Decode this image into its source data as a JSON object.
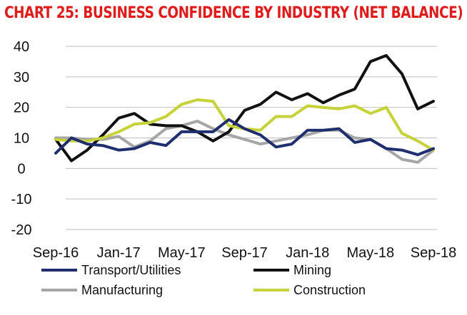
{
  "colors": {
    "title": "#e01b1b",
    "transport": "#1f2e6e",
    "mining": "#111111",
    "manufacturing": "#a6a6a6",
    "construction": "#c6d23a",
    "grid": "#bfbfbf"
  },
  "chart_data": {
    "type": "line",
    "title": "CHART 25: BUSINESS CONFIDENCE BY INDUSTRY (NET BALANCE)",
    "xlabel": "",
    "ylabel": "",
    "ylim": [
      -20,
      40
    ],
    "yticks": [
      40,
      30,
      20,
      10,
      0,
      -10,
      -20
    ],
    "grid": true,
    "legend_position": "bottom",
    "x_tick_labels": [
      "Sep-16",
      "Jan-17",
      "May-17",
      "Sep-17",
      "Jan-18",
      "May-18",
      "Sep-18"
    ],
    "x": [
      "Sep-16",
      "Oct-16",
      "Nov-16",
      "Dec-16",
      "Jan-17",
      "Feb-17",
      "Mar-17",
      "Apr-17",
      "May-17",
      "Jun-17",
      "Jul-17",
      "Aug-17",
      "Sep-17",
      "Oct-17",
      "Nov-17",
      "Dec-17",
      "Jan-18",
      "Feb-18",
      "Mar-18",
      "Apr-18",
      "May-18",
      "Jun-18",
      "Jul-18",
      "Aug-18",
      "Sep-18"
    ],
    "series": [
      {
        "name": "Transport/Utilities",
        "key": "transport",
        "values": [
          5,
          10,
          8,
          7.5,
          6,
          6.5,
          8.5,
          7.5,
          12,
          12,
          12,
          16,
          13,
          11,
          7,
          8,
          12.5,
          12.5,
          13,
          8.5,
          9.5,
          6.5,
          6,
          4.5,
          6.5
        ]
      },
      {
        "name": "Mining",
        "key": "mining",
        "values": [
          9.5,
          2.5,
          6,
          11,
          16.5,
          18,
          14.5,
          14,
          14,
          12,
          9,
          12,
          19,
          21,
          25,
          22.5,
          24.5,
          21.5,
          24,
          26,
          35,
          37,
          31,
          19.5,
          22
        ]
      },
      {
        "name": "Manufacturing",
        "key": "manufacturing",
        "values": [
          10,
          10,
          9.5,
          9.5,
          10.5,
          7,
          9,
          13,
          14,
          15.5,
          13,
          11,
          9.5,
          8,
          9,
          10,
          11,
          12.5,
          12.5,
          10,
          9.5,
          6.5,
          3,
          2,
          6
        ]
      },
      {
        "name": "Construction",
        "key": "construction",
        "values": [
          9.5,
          9,
          9,
          10,
          12,
          14.5,
          15,
          17,
          21,
          22.5,
          22,
          14,
          13,
          12.5,
          17,
          17,
          20.5,
          20,
          19.5,
          20.5,
          18,
          20,
          11.5,
          9,
          6
        ]
      }
    ]
  }
}
